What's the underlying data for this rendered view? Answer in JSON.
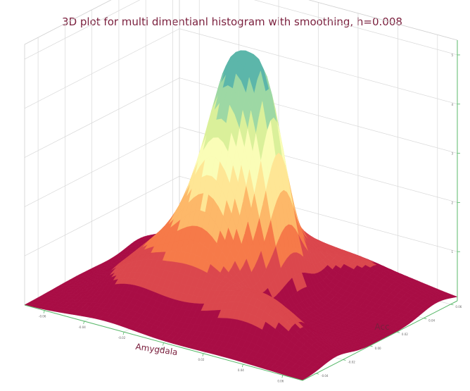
{
  "chart_data": {
    "type": "surface-3d",
    "title": "3D plot for multi dimentianl histogram with smoothing, h=0.008",
    "xlabel": "Amygdala",
    "ylabel": "Acc",
    "zlabel": "",
    "x_ticks": [
      "-0.06",
      "-0.04",
      "-0.02",
      "0.00",
      "0.02",
      "0.04",
      "0.06"
    ],
    "y_ticks": [
      "-0.04",
      "-0.02",
      "0.00",
      "0.02",
      "0.04",
      "0.06"
    ],
    "z_ticks": [
      "1",
      "2",
      "3",
      "4",
      "5"
    ],
    "xlim": [
      -0.07,
      0.07
    ],
    "ylim": [
      -0.05,
      0.065
    ],
    "zlim": [
      0,
      5.3
    ],
    "colormap": "Spectral",
    "grid": true,
    "surface": {
      "description_components": "sum of gaussian bumps (density estimate)",
      "components": [
        {
          "x": -0.004,
          "y": 0.012,
          "sx": 0.013,
          "sy": 0.017,
          "amp": 3.1
        },
        {
          "x": 0.008,
          "y": 0.018,
          "sx": 0.007,
          "sy": 0.008,
          "amp": 1.0
        },
        {
          "x": -0.016,
          "y": 0.022,
          "sx": 0.007,
          "sy": 0.008,
          "amp": 0.9
        },
        {
          "x": -0.03,
          "y": -0.008,
          "sx": 0.016,
          "sy": 0.02,
          "amp": 0.75
        },
        {
          "x": 0.03,
          "y": -0.025,
          "sx": 0.02,
          "sy": 0.01,
          "amp": 0.7
        },
        {
          "x": 0.022,
          "y": 0.05,
          "sx": 0.03,
          "sy": 0.012,
          "amp": 0.45
        },
        {
          "x": -0.05,
          "y": 0.035,
          "sx": 0.015,
          "sy": 0.01,
          "amp": 0.25
        }
      ],
      "peak_z": 5.0
    }
  },
  "colors": {
    "title": "#7a1f3d",
    "axis": "#59b86a",
    "grid": "#d9d9d9"
  }
}
